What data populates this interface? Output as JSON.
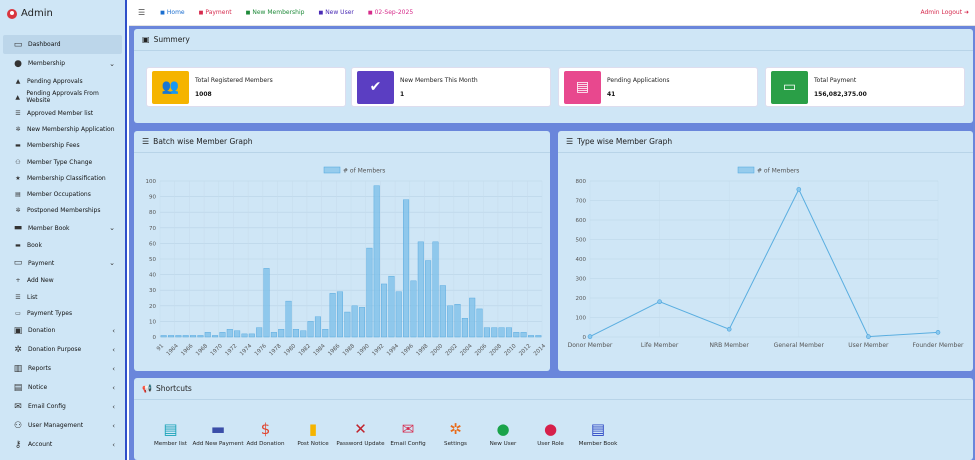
{
  "brand": {
    "title": "Admin"
  },
  "topnav": {
    "items": [
      {
        "label": "Home",
        "color": "#1c6fd0",
        "icon": "home-icon"
      },
      {
        "label": "Payment",
        "color": "#d62b4e",
        "icon": "card-icon"
      },
      {
        "label": "New Membership",
        "color": "#1f8a3a",
        "icon": "user-plus-icon"
      },
      {
        "label": "New User",
        "color": "#4a2bb5",
        "icon": "user-icon"
      },
      {
        "label": "02-Sep-2025",
        "color": "#d62b8a",
        "icon": "calendar-icon"
      }
    ],
    "logout": "Admin Logout"
  },
  "sidebar": {
    "items": [
      {
        "label": "Dashboard",
        "type": "top",
        "active": true,
        "icon": "dashboard-icon",
        "glyph": "▭"
      },
      {
        "label": "Membership",
        "type": "top",
        "chev": "⌄",
        "icon": "user-circle-icon",
        "glyph": "●"
      },
      {
        "label": "Pending Approvals",
        "type": "sub",
        "icon": "warning-icon",
        "glyph": "▲"
      },
      {
        "label": "Pending Approvals From Website",
        "type": "sub",
        "icon": "warning-icon",
        "glyph": "▲"
      },
      {
        "label": "Approved Member list",
        "type": "sub",
        "icon": "list-icon",
        "glyph": "☰"
      },
      {
        "label": "New Membership Application",
        "type": "sub",
        "icon": "gear-icon",
        "glyph": "✲"
      },
      {
        "label": "Membership Fees",
        "type": "sub",
        "icon": "money-icon",
        "glyph": "▬"
      },
      {
        "label": "Member Type Change",
        "type": "sub",
        "icon": "users-icon",
        "glyph": "⚇"
      },
      {
        "label": "Membership Classification",
        "type": "sub",
        "icon": "star-icon",
        "glyph": "★"
      },
      {
        "label": "Member Occupations",
        "type": "sub",
        "icon": "briefcase-icon",
        "glyph": "▤"
      },
      {
        "label": "Postponed Memberships",
        "type": "sub",
        "icon": "gear-icon",
        "glyph": "✲"
      },
      {
        "label": "Member Book",
        "type": "top",
        "chev": "⌄",
        "icon": "book-icon",
        "glyph": "▬"
      },
      {
        "label": "Book",
        "type": "sub",
        "icon": "book-icon",
        "glyph": "▬"
      },
      {
        "label": "Payment",
        "type": "top",
        "chev": "⌄",
        "icon": "card-icon",
        "glyph": "▭"
      },
      {
        "label": "Add New",
        "type": "sub",
        "icon": "plus-icon",
        "glyph": "+"
      },
      {
        "label": "List",
        "type": "sub",
        "icon": "list-icon",
        "glyph": "☰"
      },
      {
        "label": "Payment Types",
        "type": "sub",
        "icon": "card-icon",
        "glyph": "▭"
      },
      {
        "label": "Donation",
        "type": "top",
        "chev": "‹",
        "icon": "donation-icon",
        "glyph": "▣"
      },
      {
        "label": "Donation Purpose",
        "type": "top",
        "chev": "‹",
        "icon": "gears-icon",
        "glyph": "✲"
      },
      {
        "label": "Reports",
        "type": "top",
        "chev": "‹",
        "icon": "chart-icon",
        "glyph": "▥"
      },
      {
        "label": "Notice",
        "type": "top",
        "chev": "‹",
        "icon": "notice-icon",
        "glyph": "▤"
      },
      {
        "label": "Email Config",
        "type": "top",
        "chev": "‹",
        "icon": "email-icon",
        "glyph": "✉"
      },
      {
        "label": "User Management",
        "type": "top",
        "chev": "‹",
        "icon": "users-icon",
        "glyph": "⚇"
      },
      {
        "label": "Account",
        "type": "top",
        "chev": "‹",
        "icon": "key-icon",
        "glyph": "⚷"
      }
    ]
  },
  "summary": {
    "title": "Summery",
    "cards": [
      {
        "label": "Total Registered Members",
        "value": "1008",
        "color": "#f5b400",
        "icon": "users-icon",
        "glyph": "👥"
      },
      {
        "label": "New Members This Month",
        "value": "1",
        "color": "#5b3ec2",
        "icon": "clipboard-check-icon",
        "glyph": "✔"
      },
      {
        "label": "Pending Applications",
        "value": "41",
        "color": "#e8488e",
        "icon": "clipboard-icon",
        "glyph": "▤"
      },
      {
        "label": "Total Payment",
        "value": "156,082,375.00",
        "color": "#2a9f47",
        "icon": "payment-card-icon",
        "glyph": "▭"
      }
    ]
  },
  "batch_chart_panel": {
    "title": "Batch wise Member Graph"
  },
  "type_chart_panel": {
    "title": "Type wise Member Graph"
  },
  "chart_data": [
    {
      "type": "bar",
      "legend": "# of Members",
      "color": "#7ec0ea",
      "ylim": [
        0,
        100
      ],
      "yticks": [
        0,
        10,
        20,
        30,
        40,
        50,
        60,
        70,
        80,
        90,
        100
      ],
      "tick_labels": [
        "91",
        "1964",
        "1966",
        "1968",
        "1970",
        "1972",
        "1974",
        "1976",
        "1978",
        "1980",
        "1982",
        "1984",
        "1986",
        "1988",
        "1990",
        "1992",
        "1994",
        "1996",
        "1998",
        "2000",
        "2002",
        "2004",
        "2006",
        "2008",
        "2010",
        "2012",
        "2014"
      ],
      "values": [
        1,
        1,
        1,
        1,
        1,
        1,
        3,
        1,
        3,
        5,
        4,
        2,
        2,
        6,
        44,
        3,
        5,
        23,
        5,
        4,
        10,
        13,
        5,
        28,
        29,
        16,
        20,
        19,
        57,
        97,
        34,
        39,
        29,
        88,
        36,
        61,
        49,
        61,
        33,
        20,
        21,
        12,
        25,
        18,
        6,
        6,
        6,
        6,
        3,
        3,
        1,
        1
      ]
    },
    {
      "type": "line",
      "legend": "# of Members",
      "color": "#7ec0ea",
      "ylim": [
        0,
        800
      ],
      "yticks": [
        0,
        100,
        200,
        300,
        400,
        500,
        600,
        700,
        800
      ],
      "categories": [
        "Donor Member",
        "Life Member",
        "NRB Member",
        "General Member",
        "User Member",
        "Founder Member"
      ],
      "values": [
        2,
        181,
        40,
        757,
        2,
        24
      ]
    }
  ],
  "shortcuts": {
    "title": "Shortcuts",
    "items": [
      {
        "label": "Member list",
        "icon": "book-icon",
        "color": "#1aa3b8",
        "glyph": "▤"
      },
      {
        "label": "Add New Payment",
        "icon": "card-icon",
        "color": "#3b4ea8",
        "glyph": "▬"
      },
      {
        "label": "Add Donation",
        "icon": "donation-icon",
        "color": "#e0452f",
        "glyph": "$"
      },
      {
        "label": "Post Notice",
        "icon": "clipboard-icon",
        "color": "#f5b400",
        "glyph": "▮"
      },
      {
        "label": "Password Update",
        "icon": "tools-icon",
        "color": "#c0222c",
        "glyph": "✕"
      },
      {
        "label": "Email Config",
        "icon": "email-icon",
        "color": "#d62b4e",
        "glyph": "✉"
      },
      {
        "label": "Settings",
        "icon": "gear-icon",
        "color": "#e86b1a",
        "glyph": "✲"
      },
      {
        "label": "New User",
        "icon": "user-icon",
        "color": "#1aa34a",
        "glyph": "●"
      },
      {
        "label": "User Role",
        "icon": "user-gear-icon",
        "color": "#d6204a",
        "glyph": "●"
      },
      {
        "label": "Member Book",
        "icon": "book-icon",
        "color": "#2b45c4",
        "glyph": "▤"
      }
    ]
  }
}
